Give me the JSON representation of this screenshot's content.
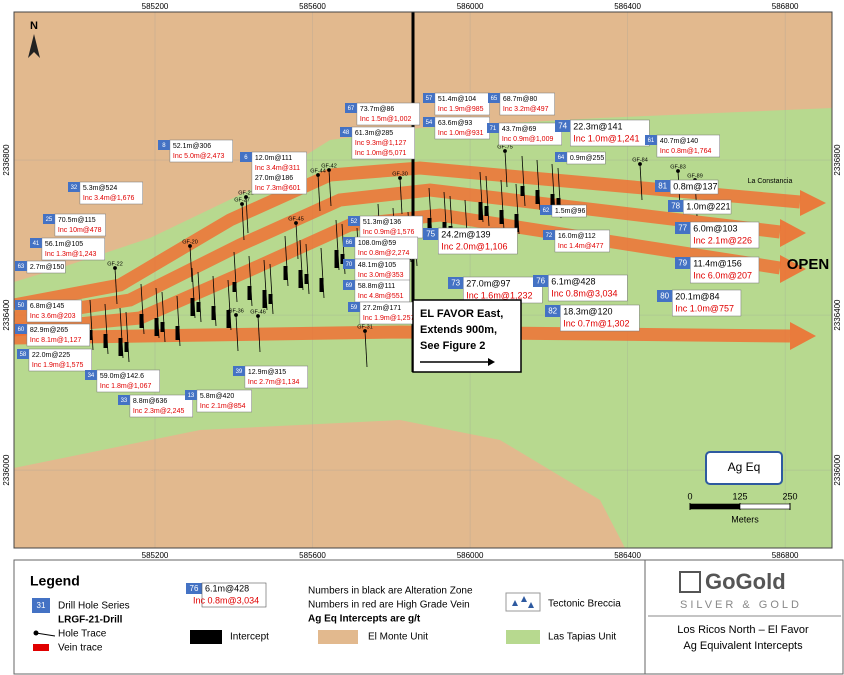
{
  "map": {
    "xlim": [
      584842,
      586919
    ],
    "ylim": [
      2335799,
      2337182
    ],
    "xticks": [
      585200,
      585600,
      586000,
      586400,
      586800
    ],
    "yticks": [
      2336000,
      2336400,
      2336800
    ],
    "north": "N",
    "place": "La Constancia",
    "open": "OPEN",
    "note": [
      "EL FAVOR East,",
      "Extends 900m,",
      "See Figure 2"
    ],
    "scale": {
      "title": "Ag Eq",
      "ticks": [
        0,
        125,
        250
      ],
      "unit": "Meters"
    },
    "holes": [
      "GF-31",
      "GF-46",
      "GF-36",
      "GF-20",
      "GF-27",
      "GF-21",
      "GF-45",
      "GF-44",
      "GF-42",
      "GF-30",
      "GF-75",
      "GF-89",
      "GF-83",
      "GF-84",
      "GF-22"
    ],
    "callouts": [
      {
        "hole": "67",
        "lines": [
          {
            "text": "73.7m@86",
            "color": "#000000"
          },
          {
            "text": "Inc 1.5m@1,002",
            "color": "#e00000"
          }
        ]
      },
      {
        "hole": "57",
        "lines": [
          {
            "text": "51.4m@104",
            "color": "#000000"
          },
          {
            "text": "Inc 1.9m@985",
            "color": "#e00000"
          }
        ]
      },
      {
        "hole": "65",
        "lines": [
          {
            "text": "68.7m@80",
            "color": "#000000"
          },
          {
            "text": "Inc 3.2m@497",
            "color": "#e00000"
          }
        ]
      },
      {
        "hole": "48",
        "lines": [
          {
            "text": "61.3m@285",
            "color": "#000000"
          },
          {
            "text": "Inc 9.3m@1,127",
            "color": "#e00000"
          },
          {
            "text": "Inc 1.0m@5,071",
            "color": "#e00000"
          }
        ]
      },
      {
        "hole": "54",
        "lines": [
          {
            "text": "63.6m@93",
            "color": "#000000"
          },
          {
            "text": "Inc 1.0m@931",
            "color": "#e00000"
          }
        ]
      },
      {
        "hole": "71",
        "lines": [
          {
            "text": "43.7m@69",
            "color": "#000000"
          },
          {
            "text": "Inc 0.9m@1,009",
            "color": "#e00000"
          }
        ]
      },
      {
        "hole": "74",
        "lines": [
          {
            "text": "22.3m@141",
            "color": "#000000"
          },
          {
            "text": "Inc 1.0m@1,241",
            "color": "#e00000"
          }
        ]
      },
      {
        "hole": "61",
        "lines": [
          {
            "text": "40.7m@140",
            "color": "#000000"
          },
          {
            "text": "Inc 0.8m@1,764",
            "color": "#e00000"
          }
        ]
      },
      {
        "hole": "8",
        "lines": [
          {
            "text": "52.1m@306",
            "color": "#000000"
          },
          {
            "text": "Inc 5.0m@2,473",
            "color": "#e00000"
          }
        ]
      },
      {
        "hole": "6",
        "lines": [
          {
            "text": "12.0m@111",
            "color": "#000000"
          },
          {
            "text": "Inc 3.4m@311",
            "color": "#e00000"
          },
          {
            "text": "27.0m@186",
            "color": "#000000"
          },
          {
            "text": "Inc 7.3m@601",
            "color": "#e00000"
          }
        ]
      },
      {
        "hole": "64",
        "lines": [
          {
            "text": "0.9m@255",
            "color": "#000000"
          }
        ]
      },
      {
        "hole": "32",
        "lines": [
          {
            "text": "5.3m@524",
            "color": "#000000"
          },
          {
            "text": "Inc 3.4m@1,676",
            "color": "#e00000"
          }
        ]
      },
      {
        "hole": "81",
        "lines": [
          {
            "text": "0.8m@137",
            "color": "#000000"
          }
        ]
      },
      {
        "hole": "62",
        "lines": [
          {
            "text": "1.5m@96",
            "color": "#000000"
          }
        ]
      },
      {
        "hole": "78",
        "lines": [
          {
            "text": "1.0m@221",
            "color": "#000000"
          }
        ]
      },
      {
        "hole": "25",
        "lines": [
          {
            "text": "70.5m@115",
            "color": "#000000"
          },
          {
            "text": "Inc 10m@478",
            "color": "#e00000"
          }
        ]
      },
      {
        "hole": "52",
        "lines": [
          {
            "text": "51.3m@136",
            "color": "#000000"
          },
          {
            "text": "Inc 0.9m@1,576",
            "color": "#e00000"
          }
        ]
      },
      {
        "hole": "77",
        "lines": [
          {
            "text": "6.0m@103",
            "color": "#000000"
          },
          {
            "text": "Inc 2.1m@226",
            "color": "#e00000"
          }
        ]
      },
      {
        "hole": "75",
        "lines": [
          {
            "text": "24.2m@139",
            "color": "#000000"
          },
          {
            "text": "Inc 2.0m@1,106",
            "color": "#e00000"
          }
        ]
      },
      {
        "hole": "72",
        "lines": [
          {
            "text": "16.0m@112",
            "color": "#000000"
          },
          {
            "text": "Inc 1.4m@477",
            "color": "#e00000"
          }
        ]
      },
      {
        "hole": "41",
        "lines": [
          {
            "text": "56.1m@105",
            "color": "#000000"
          },
          {
            "text": "Inc 1.3m@1,243",
            "color": "#e00000"
          }
        ]
      },
      {
        "hole": "66",
        "lines": [
          {
            "text": "108.0m@59",
            "color": "#000000"
          },
          {
            "text": "Inc 0.8m@2,274",
            "color": "#e00000"
          }
        ]
      },
      {
        "hole": "63",
        "lines": [
          {
            "text": "2.7m@150",
            "color": "#000000"
          }
        ]
      },
      {
        "hole": "70",
        "lines": [
          {
            "text": "48.1m@105",
            "color": "#000000"
          },
          {
            "text": "Inc 3.0m@353",
            "color": "#e00000"
          }
        ]
      },
      {
        "hole": "79",
        "lines": [
          {
            "text": "11.4m@156",
            "color": "#000000"
          },
          {
            "text": "Inc 6.0m@207",
            "color": "#e00000"
          }
        ]
      },
      {
        "hole": "73",
        "lines": [
          {
            "text": "27.0m@97",
            "color": "#000000"
          },
          {
            "text": "Inc 1.6m@1,232",
            "color": "#e00000"
          }
        ]
      },
      {
        "hole": "76",
        "lines": [
          {
            "text": "6.1m@428",
            "color": "#000000"
          },
          {
            "text": "Inc 0.8m@3,034",
            "color": "#e00000"
          }
        ]
      },
      {
        "hole": "69",
        "lines": [
          {
            "text": "58.8m@111",
            "color": "#000000"
          },
          {
            "text": "Inc 4.8m@551",
            "color": "#e00000"
          }
        ]
      },
      {
        "hole": "80",
        "lines": [
          {
            "text": "20.1m@84",
            "color": "#000000"
          },
          {
            "text": "Inc 1.0m@757",
            "color": "#e00000"
          }
        ]
      },
      {
        "hole": "59",
        "lines": [
          {
            "text": "27.2m@171",
            "color": "#000000"
          },
          {
            "text": "Inc 1.9m@1,257",
            "color": "#e00000"
          }
        ]
      },
      {
        "hole": "82",
        "lines": [
          {
            "text": "18.3m@120",
            "color": "#000000"
          },
          {
            "text": "Inc 0.7m@1,302",
            "color": "#e00000"
          }
        ]
      },
      {
        "hole": "50",
        "lines": [
          {
            "text": "6.8m@145",
            "color": "#000000"
          },
          {
            "text": "Inc 3.6m@203",
            "color": "#e00000"
          }
        ]
      },
      {
        "hole": "60",
        "lines": [
          {
            "text": "82.9m@265",
            "color": "#000000"
          },
          {
            "text": "Inc 8.1m@1,127",
            "color": "#e00000"
          }
        ]
      },
      {
        "hole": "58",
        "lines": [
          {
            "text": "22.0m@225",
            "color": "#000000"
          },
          {
            "text": "Inc 1.9m@1,575",
            "color": "#e00000"
          }
        ]
      },
      {
        "hole": "34",
        "lines": [
          {
            "text": "59.0m@142.6",
            "color": "#000000"
          },
          {
            "text": "Inc 1.8m@1,067",
            "color": "#e00000"
          }
        ]
      },
      {
        "hole": "39",
        "lines": [
          {
            "text": "12.9m@315",
            "color": "#000000"
          },
          {
            "text": "Inc 2.7m@1,134",
            "color": "#e00000"
          }
        ]
      },
      {
        "hole": "33",
        "lines": [
          {
            "text": "8.8m@636",
            "color": "#000000"
          },
          {
            "text": "Inc 2.3m@2,245",
            "color": "#e00000"
          }
        ]
      },
      {
        "hole": "13",
        "lines": [
          {
            "text": "5.8m@420",
            "color": "#000000"
          },
          {
            "text": "Inc 2.1m@854",
            "color": "#e00000"
          }
        ]
      }
    ]
  },
  "legend": {
    "title": "Legend",
    "series_no": "31",
    "series": "Drill Hole Series",
    "drill": "LRGF-21-Drill",
    "trace": "Hole Trace",
    "vein": "Vein trace",
    "sample": {
      "hole": "76",
      "main": "6.1m@428",
      "inc": "Inc 0.8m@3,034"
    },
    "notes": [
      "Numbers in black are Alteration Zone",
      "Numbers in red are High Grade Vein",
      "Ag Eq Intercepts are g/t"
    ],
    "intercept": "Intercept",
    "monte": "El Monte Unit",
    "breccia": "Tectonic Breccia",
    "tapias": "Las Tapias Unit"
  },
  "logo": {
    "name": "GoGold",
    "tagline": "SILVER & GOLD",
    "title": [
      "Los Ricos North – El Favor",
      "Ag Equivalent Intercepts"
    ]
  }
}
